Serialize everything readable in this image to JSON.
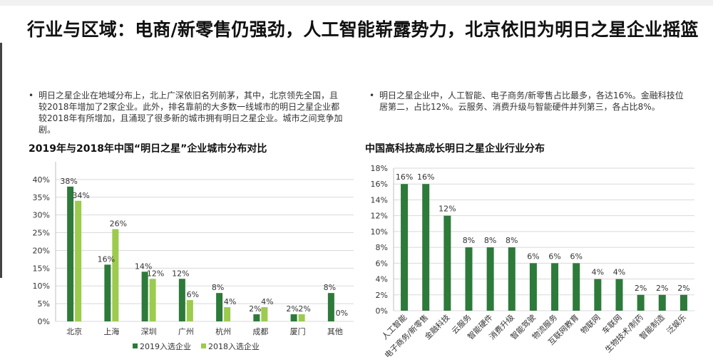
{
  "page": {
    "title": "行业与区域：电商/新零售仍强劲，人工智能崭露势力，北京依旧为明日之星企业摇篮",
    "bullet_left": "明日之星企业在地域分布上，北上广深依旧名列前茅，其中，北京领先全国，且较2018年增加了2家企业。此外，排名靠前的大多数一线城市的明日之星企业都较2018年有所增加，且涌现了很多新的城市拥有明日之星企业。城市之间竞争加剧。",
    "bullet_right": "明日之星企业中，人工智能、电子商务/新零售占比最多，各达16%。金融科技位居第二，占比12%。云服务、消费升级与智能硬件并列第三，各占比8%。",
    "bullet_symbol": "•"
  },
  "colors": {
    "dark_green": "#2d7a3a",
    "light_green": "#9ccb4d",
    "grid": "#d9d9d9"
  },
  "chart_data": [
    {
      "type": "bar",
      "title": "2019年与2018年中国“明日之星”企业城市分布对比",
      "categories": [
        "北京",
        "上海",
        "深圳",
        "广州",
        "杭州",
        "成都",
        "厦门",
        "其他"
      ],
      "series": [
        {
          "name": "2019入选企业",
          "values": [
            38,
            16,
            14,
            12,
            8,
            2,
            2,
            8
          ],
          "labels": [
            "38%",
            "16%",
            "14%",
            "12%",
            "8%",
            "2%",
            "2%",
            "8%"
          ]
        },
        {
          "name": "2018入选企业",
          "values": [
            34,
            26,
            12,
            6,
            4,
            4,
            2,
            0
          ],
          "labels": [
            "34%",
            "26%",
            "12%",
            "6%",
            "4%",
            "4%",
            "2%",
            "0%"
          ]
        }
      ],
      "ylim": [
        0,
        45
      ],
      "yticks": [
        "0%",
        "5%",
        "10%",
        "15%",
        "20%",
        "25%",
        "30%",
        "35%",
        "40%"
      ],
      "grid": true,
      "legend": "bottom-center"
    },
    {
      "type": "bar",
      "title": "中国高科技高成长明日之星企业行业分布",
      "categories": [
        "人工智能",
        "电子商务/新零售",
        "金融科技",
        "云服务",
        "智能硬件",
        "消费升级",
        "智能驾驶",
        "物流服务",
        "互联网教育",
        "物联网",
        "车联网",
        "生物技术/制药",
        "智能制造",
        "泛娱乐"
      ],
      "values": [
        16,
        16,
        12,
        8,
        8,
        8,
        6,
        6,
        6,
        4,
        4,
        2,
        2,
        2
      ],
      "labels": [
        "16%",
        "16%",
        "12%",
        "8%",
        "8%",
        "8%",
        "6%",
        "6%",
        "6%",
        "4%",
        "4%",
        "2%",
        "2%",
        "2%"
      ],
      "ylim": [
        0,
        18
      ],
      "yticks": [
        "0%",
        "2%",
        "4%",
        "6%",
        "8%",
        "10%",
        "12%",
        "14%",
        "16%",
        "18%"
      ],
      "grid": true
    }
  ]
}
